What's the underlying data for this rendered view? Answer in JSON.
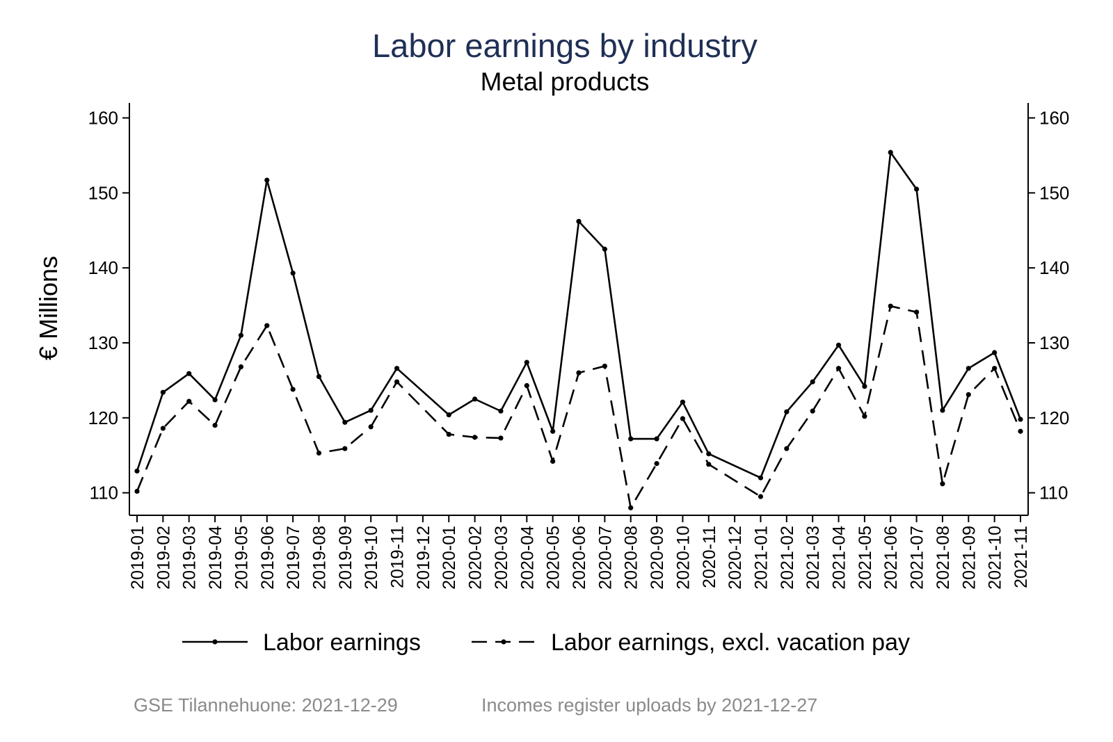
{
  "notes": {
    "left": "GSE Tilannehuone: 2021-12-29",
    "right": "Incomes register uploads by 2021-12-27"
  },
  "chart_data": {
    "type": "line",
    "title": "Labor earnings by industry",
    "subtitle": "Metal products",
    "ylabel": "€ Millions",
    "xlabel": "",
    "ylim": [
      107,
      162
    ],
    "yticks": [
      110,
      120,
      130,
      140,
      150,
      160
    ],
    "grid": false,
    "legend_position": "bottom",
    "x": [
      "2019-01",
      "2019-02",
      "2019-03",
      "2019-04",
      "2019-05",
      "2019-06",
      "2019-07",
      "2019-08",
      "2019-09",
      "2019-10",
      "2019-11",
      "2019-12",
      "2020-01",
      "2020-02",
      "2020-03",
      "2020-04",
      "2020-05",
      "2020-06",
      "2020-07",
      "2020-08",
      "2020-09",
      "2020-10",
      "2020-11",
      "2020-12",
      "2021-01",
      "2021-02",
      "2021-03",
      "2021-04",
      "2021-05",
      "2021-06",
      "2021-07",
      "2021-08",
      "2021-09",
      "2021-10",
      "2021-11"
    ],
    "series": [
      {
        "name": "Labor earnings",
        "style": "solid",
        "color": "#000000",
        "values": [
          112.9,
          123.4,
          125.9,
          122.4,
          131.0,
          151.7,
          139.3,
          125.5,
          119.4,
          121.0,
          126.6,
          null,
          120.4,
          122.5,
          120.9,
          127.4,
          118.2,
          146.2,
          142.5,
          117.2,
          117.2,
          122.1,
          115.2,
          null,
          112.0,
          120.8,
          124.8,
          129.7,
          124.2,
          155.4,
          150.5,
          121.0,
          126.6,
          128.7,
          119.8
        ]
      },
      {
        "name": "Labor earnings, excl. vacation pay",
        "style": "dashed",
        "color": "#000000",
        "values": [
          110.2,
          118.6,
          122.2,
          119.0,
          126.8,
          132.3,
          123.8,
          115.3,
          115.9,
          118.8,
          124.8,
          null,
          117.8,
          117.4,
          117.3,
          124.3,
          114.2,
          126.0,
          126.9,
          108.0,
          113.9,
          119.9,
          113.8,
          null,
          109.5,
          115.9,
          120.9,
          126.6,
          120.2,
          134.9,
          134.1,
          111.2,
          123.1,
          126.6,
          118.2
        ]
      }
    ]
  }
}
